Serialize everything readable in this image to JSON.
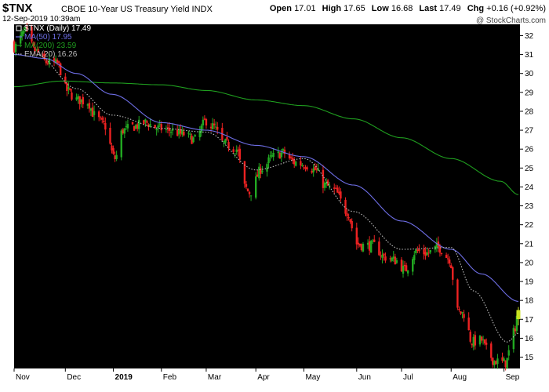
{
  "header": {
    "symbol": "$TNX",
    "name": "CBOE 10-Year US Treasury Yield",
    "exchange": "INDX",
    "datetime": "12-Sep-2019 10:39am",
    "source": "@ StockCharts.com",
    "open_label": "Open",
    "open": "17.01",
    "high_label": "High",
    "high": "17.65",
    "low_label": "Low",
    "low": "16.68",
    "last_label": "Last",
    "last": "17.49",
    "chg_label": "Chg",
    "chg": "+0.16 (+0.92%)"
  },
  "colors": {
    "background": "#000000",
    "up_candle": "#22aa22",
    "down_candle": "#ee2222",
    "last_candle": "#c8e020",
    "ma50": "#6e6ee6",
    "ma200": "#1f9e1f",
    "ema20": "#bbbbbb"
  },
  "chart_data": {
    "type": "candlestick",
    "y_axis_side": "right",
    "ylim": [
      14.4,
      32.6
    ],
    "y_ticks": [
      15,
      16,
      17,
      18,
      19,
      20,
      21,
      22,
      23,
      24,
      25,
      26,
      27,
      28,
      29,
      30,
      31,
      32
    ],
    "x_range": [
      "2018-11-01",
      "2019-09-13"
    ],
    "x_ticks": [
      {
        "date": "2018-11-01",
        "label": "Nov"
      },
      {
        "date": "2018-12-03",
        "label": "Dec"
      },
      {
        "date": "2019-01-02",
        "label": "2019"
      },
      {
        "date": "2019-02-01",
        "label": "Feb"
      },
      {
        "date": "2019-03-01",
        "label": "Mar"
      },
      {
        "date": "2019-04-01",
        "label": "Apr"
      },
      {
        "date": "2019-05-01",
        "label": "May"
      },
      {
        "date": "2019-06-03",
        "label": "Jun"
      },
      {
        "date": "2019-07-01",
        "label": "Jul"
      },
      {
        "date": "2019-08-01",
        "label": "Aug"
      },
      {
        "date": "2019-09-03",
        "label": "Sep"
      }
    ],
    "legend": [
      {
        "label": "$TNX (Daily) 17.49",
        "color": "#ffffff",
        "style": "square"
      },
      {
        "label": "MA(50) 17.95",
        "color": "#6e6ee6",
        "style": "line"
      },
      {
        "label": "MA(200) 23.59",
        "color": "#1f9e1f",
        "style": "line"
      },
      {
        "label": "EMA(20) 16.26",
        "color": "#bbbbbb",
        "style": "dotted"
      }
    ],
    "close_anchors": [
      [
        "2018-11-01",
        31.4
      ],
      [
        "2018-11-08",
        32.2
      ],
      [
        "2018-11-14",
        31.2
      ],
      [
        "2018-11-21",
        30.6
      ],
      [
        "2018-11-28",
        30.5
      ],
      [
        "2018-12-04",
        29.1
      ],
      [
        "2018-12-10",
        28.6
      ],
      [
        "2018-12-17",
        28.5
      ],
      [
        "2018-12-21",
        27.8
      ],
      [
        "2018-12-27",
        27.3
      ],
      [
        "2019-01-03",
        25.5
      ],
      [
        "2019-01-08",
        27.0
      ],
      [
        "2019-01-15",
        27.2
      ],
      [
        "2019-01-22",
        27.4
      ],
      [
        "2019-01-30",
        27.1
      ],
      [
        "2019-02-06",
        27.0
      ],
      [
        "2019-02-14",
        26.8
      ],
      [
        "2019-02-22",
        26.5
      ],
      [
        "2019-03-01",
        27.5
      ],
      [
        "2019-03-05",
        27.2
      ],
      [
        "2019-03-12",
        26.3
      ],
      [
        "2019-03-20",
        26.0
      ],
      [
        "2019-03-25",
        24.0
      ],
      [
        "2019-03-28",
        23.7
      ],
      [
        "2019-04-05",
        25.0
      ],
      [
        "2019-04-12",
        25.6
      ],
      [
        "2019-04-18",
        25.8
      ],
      [
        "2019-04-25",
        25.3
      ],
      [
        "2019-05-01",
        25.2
      ],
      [
        "2019-05-08",
        24.9
      ],
      [
        "2019-05-14",
        24.1
      ],
      [
        "2019-05-20",
        23.8
      ],
      [
        "2019-05-28",
        22.7
      ],
      [
        "2019-06-03",
        21.0
      ],
      [
        "2019-06-07",
        20.9
      ],
      [
        "2019-06-14",
        20.9
      ],
      [
        "2019-06-20",
        20.3
      ],
      [
        "2019-06-28",
        20.1
      ],
      [
        "2019-07-03",
        19.6
      ],
      [
        "2019-07-10",
        20.6
      ],
      [
        "2019-07-17",
        20.5
      ],
      [
        "2019-07-24",
        20.8
      ],
      [
        "2019-07-31",
        20.2
      ],
      [
        "2019-08-05",
        17.4
      ],
      [
        "2019-08-09",
        17.3
      ],
      [
        "2019-08-14",
        15.8
      ],
      [
        "2019-08-20",
        15.9
      ],
      [
        "2019-08-23",
        15.4
      ],
      [
        "2019-08-28",
        14.8
      ],
      [
        "2019-09-04",
        14.7
      ],
      [
        "2019-09-09",
        16.3
      ],
      [
        "2019-09-12",
        17.49
      ]
    ],
    "ma200_anchors": [
      [
        "2018-11-01",
        29.3
      ],
      [
        "2018-12-01",
        29.6
      ],
      [
        "2019-01-01",
        29.5
      ],
      [
        "2019-02-01",
        29.4
      ],
      [
        "2019-03-01",
        29.1
      ],
      [
        "2019-04-01",
        28.6
      ],
      [
        "2019-05-01",
        28.3
      ],
      [
        "2019-06-01",
        27.6
      ],
      [
        "2019-07-01",
        26.6
      ],
      [
        "2019-08-01",
        25.5
      ],
      [
        "2019-09-01",
        24.3
      ],
      [
        "2019-09-12",
        23.59
      ]
    ],
    "ma50_anchors": [
      [
        "2018-11-01",
        31.0
      ],
      [
        "2018-11-20",
        30.8
      ],
      [
        "2018-12-10",
        30.0
      ],
      [
        "2019-01-01",
        28.9
      ],
      [
        "2019-02-01",
        27.4
      ],
      [
        "2019-03-01",
        27.0
      ],
      [
        "2019-04-01",
        26.2
      ],
      [
        "2019-05-01",
        25.6
      ],
      [
        "2019-06-01",
        24.1
      ],
      [
        "2019-07-01",
        22.2
      ],
      [
        "2019-08-01",
        20.7
      ],
      [
        "2019-08-20",
        19.4
      ],
      [
        "2019-09-12",
        17.95
      ]
    ],
    "ema20_anchors": [
      [
        "2018-11-15",
        31.0
      ],
      [
        "2018-12-10",
        29.2
      ],
      [
        "2019-01-01",
        27.8
      ],
      [
        "2019-02-01",
        27.1
      ],
      [
        "2019-03-01",
        26.9
      ],
      [
        "2019-04-01",
        24.9
      ],
      [
        "2019-05-01",
        25.5
      ],
      [
        "2019-06-01",
        22.7
      ],
      [
        "2019-07-01",
        20.7
      ],
      [
        "2019-08-01",
        20.8
      ],
      [
        "2019-08-15",
        18.5
      ],
      [
        "2019-09-05",
        15.8
      ],
      [
        "2019-09-12",
        16.26
      ]
    ],
    "last_candle": {
      "date": "2019-09-12",
      "open": 17.01,
      "high": 17.65,
      "low": 16.68,
      "close": 17.49
    }
  }
}
